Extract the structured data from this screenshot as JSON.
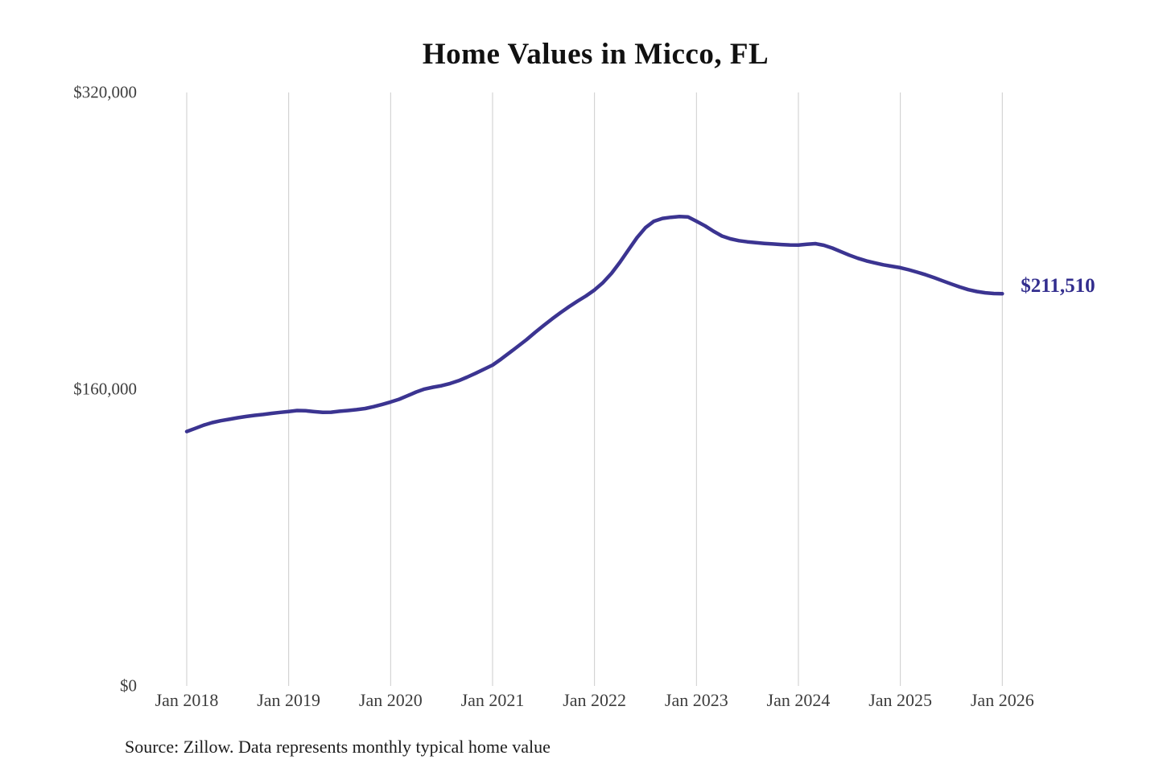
{
  "chart_data": {
    "type": "line",
    "title": "Home Values in Micco, FL",
    "xlabel": "",
    "ylabel": "",
    "legend": "none",
    "grid": {
      "vertical": true,
      "horizontal": false,
      "color": "#cccccc"
    },
    "y_axis": {
      "min": 0,
      "max": 320000,
      "ticks": [
        {
          "value": 0,
          "label": "$0"
        },
        {
          "value": 160000,
          "label": "$160,000"
        },
        {
          "value": 320000,
          "label": "$320,000"
        }
      ]
    },
    "x_axis": {
      "ticks": [
        "Jan 2018",
        "Jan 2019",
        "Jan 2020",
        "Jan 2021",
        "Jan 2022",
        "Jan 2023",
        "Jan 2024",
        "Jan 2025",
        "Jan 2026"
      ]
    },
    "series": [
      {
        "name": "Monthly typical home value",
        "color": "#3b3491",
        "x": [
          "2018-01",
          "2018-02",
          "2018-03",
          "2018-04",
          "2018-05",
          "2018-06",
          "2018-07",
          "2018-08",
          "2018-09",
          "2018-10",
          "2018-11",
          "2018-12",
          "2019-01",
          "2019-02",
          "2019-03",
          "2019-04",
          "2019-05",
          "2019-06",
          "2019-07",
          "2019-08",
          "2019-09",
          "2019-10",
          "2019-11",
          "2019-12",
          "2020-01",
          "2020-02",
          "2020-03",
          "2020-04",
          "2020-05",
          "2020-06",
          "2020-07",
          "2020-08",
          "2020-09",
          "2020-10",
          "2020-11",
          "2020-12",
          "2021-01",
          "2021-02",
          "2021-03",
          "2021-04",
          "2021-05",
          "2021-06",
          "2021-07",
          "2021-08",
          "2021-09",
          "2021-10",
          "2021-11",
          "2021-12",
          "2022-01",
          "2022-02",
          "2022-03",
          "2022-04",
          "2022-05",
          "2022-06",
          "2022-07",
          "2022-08",
          "2022-09",
          "2022-10",
          "2022-11",
          "2022-12",
          "2023-01",
          "2023-02",
          "2023-03",
          "2023-04",
          "2023-05",
          "2023-06",
          "2023-07",
          "2023-08",
          "2023-09",
          "2023-10",
          "2023-11",
          "2023-12",
          "2024-01",
          "2024-02",
          "2024-03",
          "2024-04",
          "2024-05",
          "2024-06",
          "2024-07",
          "2024-08",
          "2024-09",
          "2024-10",
          "2024-11",
          "2024-12",
          "2025-01",
          "2025-02",
          "2025-03",
          "2025-04",
          "2025-05",
          "2025-06",
          "2025-07",
          "2025-08",
          "2025-09",
          "2025-10",
          "2025-11",
          "2025-12",
          "2026-01"
        ],
        "values": [
          137200,
          138900,
          140600,
          142000,
          143000,
          143800,
          144600,
          145300,
          145900,
          146400,
          147000,
          147500,
          148000,
          148500,
          148400,
          147900,
          147500,
          147600,
          148100,
          148500,
          149000,
          149600,
          150600,
          151800,
          153100,
          154600,
          156500,
          158500,
          160100,
          161100,
          161900,
          163100,
          164600,
          166500,
          168600,
          170800,
          173000,
          176200,
          179700,
          183200,
          186700,
          190600,
          194300,
          197900,
          201300,
          204500,
          207500,
          210300,
          213500,
          217500,
          222500,
          228500,
          235200,
          241700,
          247100,
          250600,
          252100,
          252700,
          253100,
          252900,
          250600,
          248100,
          245200,
          242600,
          241100,
          240100,
          239500,
          239000,
          238600,
          238300,
          238000,
          237800,
          237700,
          238200,
          238500,
          237600,
          236100,
          234200,
          232300,
          230600,
          229200,
          228100,
          227100,
          226300,
          225500,
          224400,
          223100,
          221700,
          220100,
          218400,
          216700,
          215100,
          213700,
          212700,
          212000,
          211600,
          211510
        ]
      }
    ],
    "annotation": {
      "label": "$211,510",
      "value": 211510,
      "color": "#332e8e"
    },
    "source": "Source: Zillow. Data represents monthly typical home value"
  }
}
